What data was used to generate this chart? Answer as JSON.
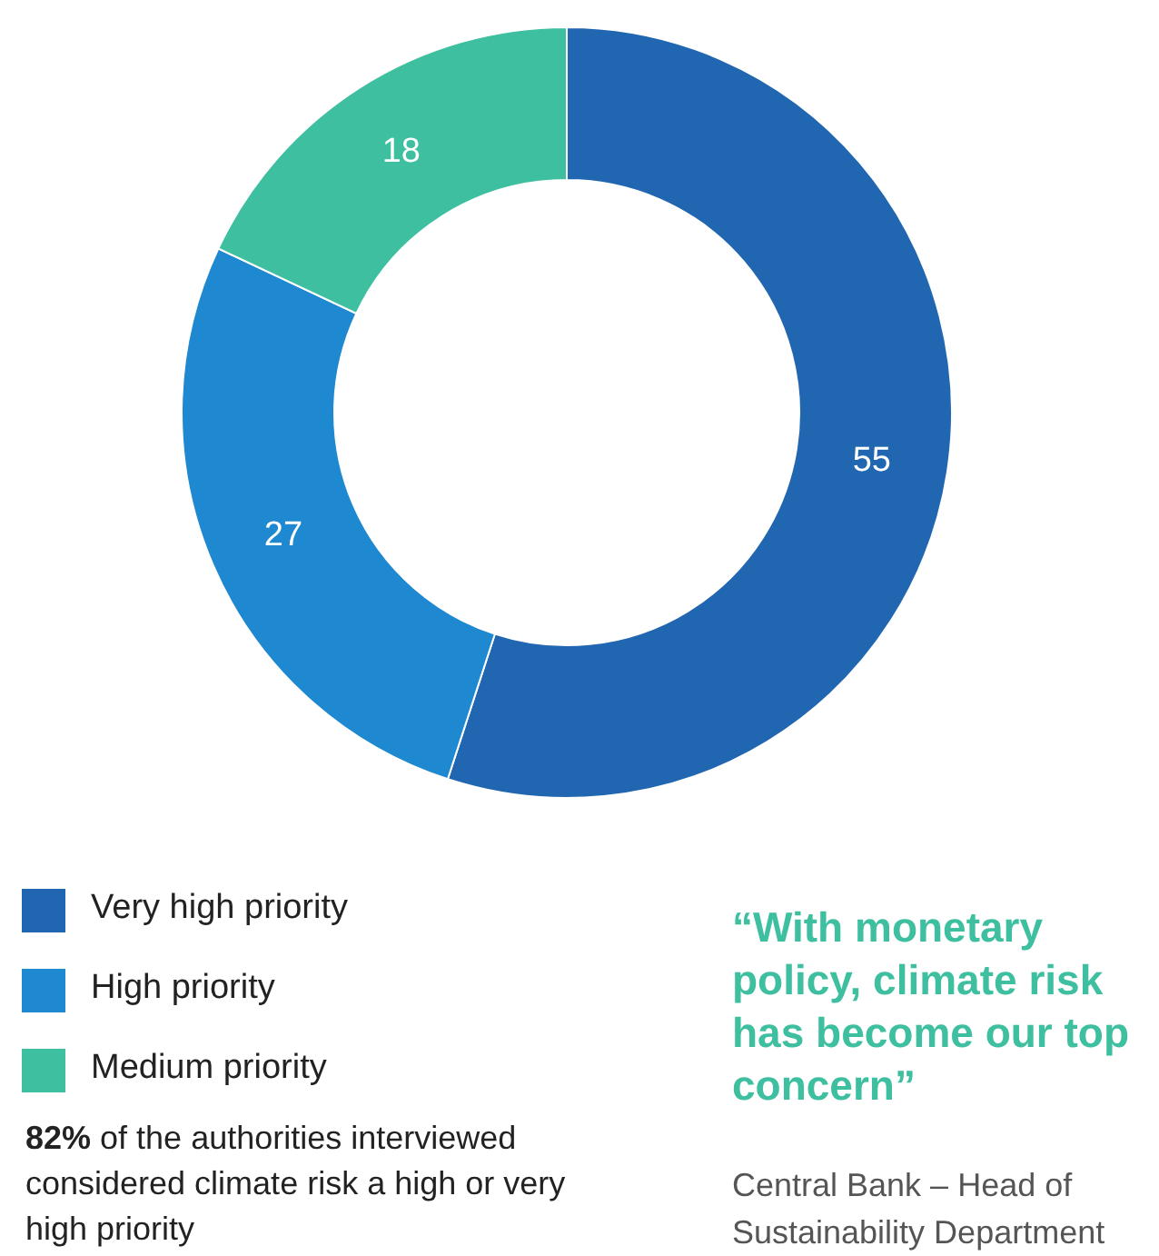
{
  "chart_data": {
    "type": "donut",
    "categories": [
      "Very high priority",
      "High priority",
      "Medium priority"
    ],
    "values": [
      55,
      27,
      18
    ],
    "colors": [
      "#2166b0",
      "#1e88d0",
      "#3dbfa0"
    ],
    "data_labels": true,
    "legend": "bottom left",
    "annotations": [
      "82% of the authorities interviewed considered climate risk a high or very high priority",
      "“With monetary policy, climate risk has become our top concern”",
      "Central Bank – Head of Sustainability Department"
    ]
  }
}
